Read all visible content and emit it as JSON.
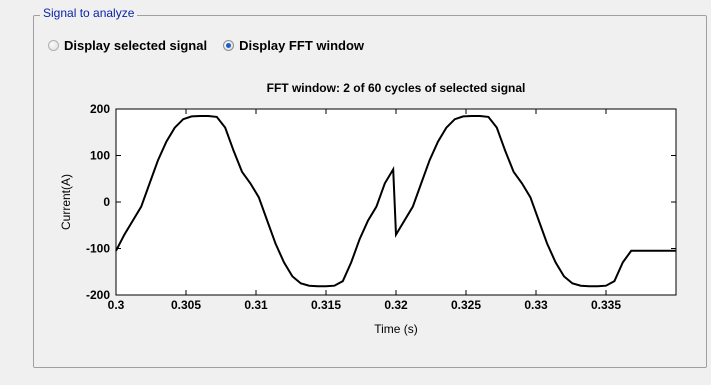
{
  "panel": {
    "group_title": "Signal to analyze",
    "options": [
      {
        "label": "Display selected signal",
        "checked": false
      },
      {
        "label": "Display FFT window",
        "checked": true
      }
    ]
  },
  "chart_data": {
    "type": "line",
    "title": "FFT window: 2 of 60 cycles of selected signal",
    "xlabel": "Time (s)",
    "ylabel": "Current(A)",
    "xlim": [
      0.3,
      0.34
    ],
    "ylim": [
      -200,
      200
    ],
    "x_ticks": [
      0.3,
      0.305,
      0.31,
      0.315,
      0.32,
      0.325,
      0.33,
      0.335
    ],
    "x_tick_labels": [
      "0.3",
      "0.305",
      "0.31",
      "0.315",
      "0.32",
      "0.325",
      "0.33",
      "0.335"
    ],
    "y_ticks": [
      -200,
      -100,
      0,
      100,
      200
    ],
    "y_tick_labels": [
      "-200",
      "-100",
      "0",
      "100",
      "200"
    ],
    "line_color": "#000000",
    "grid": false,
    "series": [
      {
        "x": [
          0.3,
          0.3006,
          0.3012,
          0.3018,
          0.3024,
          0.303,
          0.3036,
          0.3042,
          0.3048,
          0.3054,
          0.306,
          0.3066,
          0.3072,
          0.3078,
          0.3084,
          0.309,
          0.3096,
          0.3102,
          0.3108,
          0.3114,
          0.312,
          0.3126,
          0.3132,
          0.3138,
          0.3144,
          0.315,
          0.3156,
          0.3162,
          0.3168,
          0.3174,
          0.318,
          0.3186,
          0.3192,
          0.3198,
          0.32,
          0.3206,
          0.3212,
          0.3218,
          0.3224,
          0.323,
          0.3236,
          0.3242,
          0.3248,
          0.3254,
          0.326,
          0.3266,
          0.3272,
          0.3278,
          0.3284,
          0.329,
          0.3296,
          0.3302,
          0.3308,
          0.3314,
          0.332,
          0.3326,
          0.3332,
          0.3338,
          0.3344,
          0.335,
          0.3356,
          0.3362,
          0.3368,
          0.3374,
          0.338,
          0.3386,
          0.3392,
          0.34
        ],
        "y": [
          -105,
          -70,
          -40,
          -10,
          40,
          90,
          130,
          160,
          178,
          184,
          185,
          185,
          183,
          160,
          110,
          65,
          40,
          10,
          -40,
          -90,
          -130,
          -160,
          -175,
          -180,
          -181,
          -181,
          -180,
          -170,
          -130,
          -80,
          -40,
          -10,
          40,
          70,
          -70,
          -40,
          -10,
          40,
          90,
          130,
          160,
          178,
          184,
          185,
          185,
          183,
          160,
          110,
          65,
          40,
          10,
          -40,
          -90,
          -130,
          -160,
          -175,
          -180,
          -181,
          -181,
          -180,
          -170,
          -130,
          -105,
          -105,
          -105,
          -105,
          -105,
          -105
        ]
      }
    ]
  }
}
